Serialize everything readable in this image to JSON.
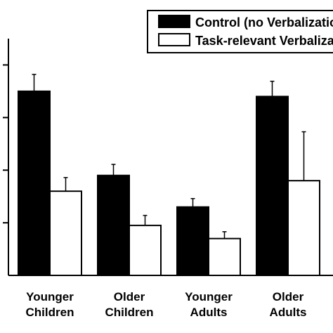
{
  "chart_data": {
    "type": "bar",
    "categories": [
      [
        "Younger",
        "Children"
      ],
      [
        "Older",
        "Children"
      ],
      [
        "Younger",
        "Adults"
      ],
      [
        "Older",
        "Adults"
      ]
    ],
    "series": [
      {
        "name": "Control (no Verbalization)",
        "color": "#000000",
        "values": [
          0.35,
          0.19,
          0.13,
          0.34
        ],
        "errors": [
          0.032,
          0.021,
          0.016,
          0.029
        ]
      },
      {
        "name": "Task-relevant Verbalization",
        "color": "#ffffff",
        "values": [
          0.16,
          0.095,
          0.07,
          0.18
        ],
        "errors": [
          0.026,
          0.019,
          0.013,
          0.093
        ]
      }
    ],
    "ylim": [
      0,
      0.45
    ],
    "yticks": [
      0.1,
      0.2,
      0.3,
      0.4
    ],
    "title": "",
    "xlabel": "",
    "ylabel": "",
    "legend_position": "top-right",
    "grid": false
  }
}
